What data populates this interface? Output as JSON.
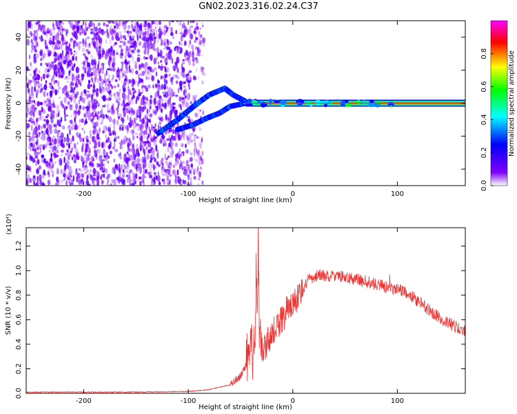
{
  "title": "GN02.2023.316.02.24.C37",
  "chart_data": [
    {
      "type": "heatmap",
      "xlabel": "Height of straight line (km)",
      "ylabel": "Frequency (Hz)",
      "xlim": [
        -255,
        165
      ],
      "ylim": [
        -50,
        50
      ],
      "x_ticks": [
        -200,
        -100,
        0,
        100
      ],
      "x_tick_labels": [
        "-200",
        "-100",
        "0",
        "100"
      ],
      "y_ticks": [
        -40,
        -20,
        0,
        20,
        40
      ],
      "y_tick_labels": [
        "-40",
        "-20",
        "0",
        "20",
        "40"
      ],
      "colorbar": {
        "label": "Normalized spectral amplitude",
        "range": [
          0,
          1
        ],
        "ticks": [
          0.0,
          0.2,
          0.4,
          0.6,
          0.8
        ],
        "tick_labels": [
          "0.0",
          "0.2",
          "0.4",
          "0.6",
          "0.8"
        ],
        "colormap": [
          "#ffffff",
          "#7f00ff",
          "#0000ff",
          "#00ffff",
          "#00ff00",
          "#ffff00",
          "#ff0000",
          "#ff00ff"
        ]
      },
      "features": [
        {
          "name": "noise",
          "x_range": [
            -255,
            -85
          ],
          "y_range": [
            -50,
            50
          ],
          "amplitude": 0.25
        },
        {
          "name": "upper branch",
          "points": [
            [
              -128,
              -18
            ],
            [
              -110,
              -10
            ],
            [
              -95,
              -2
            ],
            [
              -80,
              5
            ],
            [
              -65,
              9
            ],
            [
              -57,
              5
            ],
            [
              -45,
              1
            ]
          ]
        },
        {
          "name": "lower branch",
          "points": [
            [
              -110,
              -16
            ],
            [
              -95,
              -13
            ],
            [
              -82,
              -9
            ],
            [
              -70,
              -6
            ],
            [
              -60,
              -2
            ],
            [
              -45,
              0
            ]
          ]
        },
        {
          "name": "tone",
          "x_range": [
            -45,
            165
          ],
          "y": 0,
          "amplitude": 1.0
        }
      ]
    },
    {
      "type": "line",
      "xlabel": "Height of straight line (km)",
      "ylabel": "SNR (10 * v/v)",
      "y_multiplier": "(x10⁴)",
      "xlim": [
        -255,
        165
      ],
      "ylim": [
        0,
        1.35
      ],
      "x_ticks": [
        -200,
        -100,
        0,
        100
      ],
      "x_tick_labels": [
        "-200",
        "-100",
        "0",
        "100"
      ],
      "y_ticks": [
        0.0,
        0.2,
        0.4,
        0.6,
        0.8,
        1.0,
        1.2
      ],
      "y_tick_labels": [
        "0.0",
        "0.2",
        "0.4",
        "0.6",
        "0.8",
        "1.0",
        "1.2"
      ],
      "line_color": "#ee3333",
      "series": [
        {
          "x": [
            -255,
            -200,
            -150,
            -100,
            -80,
            -60,
            -50,
            -45,
            -40,
            -38,
            -36,
            -35,
            -34,
            -33,
            -32,
            -30,
            -25,
            -20,
            -15,
            -10,
            -5,
            0,
            5,
            10,
            15,
            20,
            25,
            30,
            40,
            50,
            60,
            70,
            80,
            90,
            100,
            110,
            120,
            130,
            140,
            150,
            165
          ],
          "y": [
            0.01,
            0.01,
            0.01,
            0.015,
            0.03,
            0.07,
            0.14,
            0.22,
            0.42,
            0.3,
            0.5,
            1.1,
            0.6,
            1.33,
            0.45,
            0.35,
            0.4,
            0.48,
            0.55,
            0.6,
            0.7,
            0.73,
            0.78,
            0.86,
            0.92,
            0.95,
            0.96,
            0.96,
            0.95,
            0.95,
            0.93,
            0.91,
            0.89,
            0.86,
            0.85,
            0.82,
            0.75,
            0.68,
            0.62,
            0.57,
            0.5
          ]
        }
      ]
    }
  ]
}
